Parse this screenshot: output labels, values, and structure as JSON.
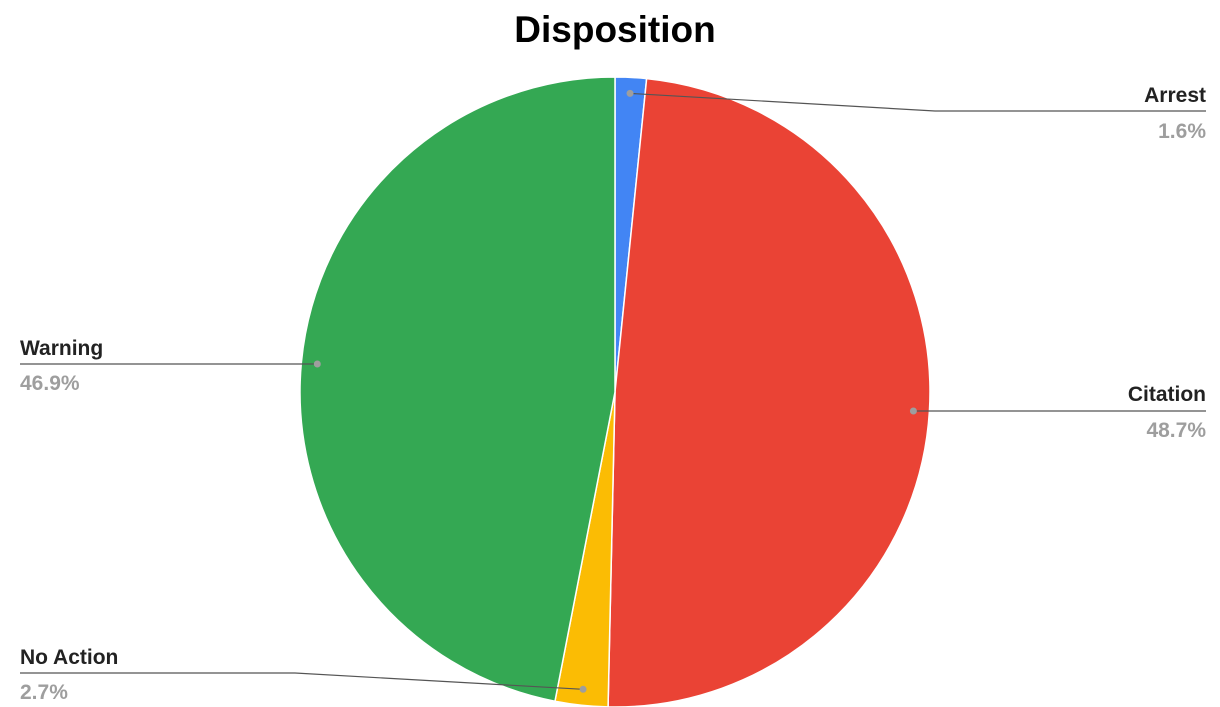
{
  "chart_data": {
    "type": "pie",
    "title": "Disposition",
    "legend": "none",
    "start_angle_deg": 0,
    "direction": "clockwise",
    "slices": [
      {
        "label": "Arrest",
        "value": 1.6,
        "percent_label": "1.6%",
        "color": "#4285f4"
      },
      {
        "label": "Citation",
        "value": 48.7,
        "percent_label": "48.7%",
        "color": "#ea4335"
      },
      {
        "label": "No Action",
        "value": 2.7,
        "percent_label": "2.7%",
        "color": "#fbbc04"
      },
      {
        "label": "Warning",
        "value": 46.9,
        "percent_label": "46.9%",
        "color": "#34a853"
      }
    ]
  },
  "style": {
    "leader_line_color": "#555555",
    "leader_dot_color": "#9e9e9e",
    "slice_border_color": "#ffffff"
  }
}
